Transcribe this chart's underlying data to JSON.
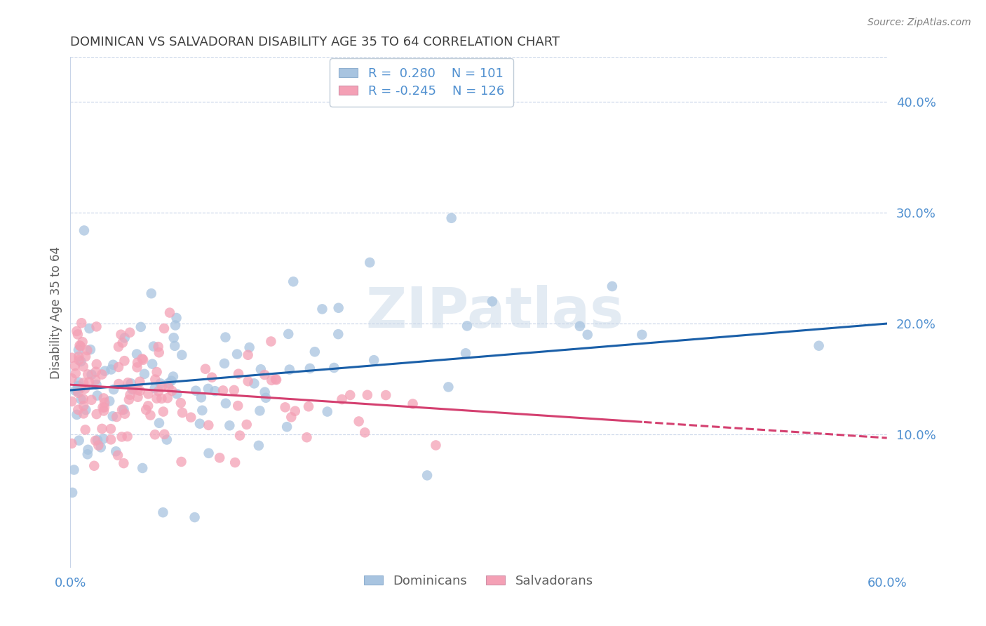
{
  "title": "DOMINICAN VS SALVADORAN DISABILITY AGE 35 TO 64 CORRELATION CHART",
  "source": "Source: ZipAtlas.com",
  "ylabel": "Disability Age 35 to 64",
  "xlim": [
    0.0,
    0.6
  ],
  "ylim": [
    -0.02,
    0.44
  ],
  "yticks": [
    0.1,
    0.2,
    0.3,
    0.4
  ],
  "dominican_color": "#a8c4e0",
  "salvadoran_color": "#f4a0b5",
  "trend_dominican_color": "#1a5fa8",
  "trend_salvadoran_color": "#d44070",
  "dominican_R": 0.28,
  "dominican_N": 101,
  "salvadoran_R": -0.245,
  "salvadoran_N": 126,
  "watermark": "ZIPatlas",
  "background_color": "#ffffff",
  "grid_color": "#c8d4e8",
  "title_color": "#404040",
  "axis_label_color": "#606060",
  "tick_color": "#5090d0",
  "dom_intercept": 0.14,
  "dom_slope": 0.1,
  "sal_intercept": 0.145,
  "sal_slope": -0.08
}
